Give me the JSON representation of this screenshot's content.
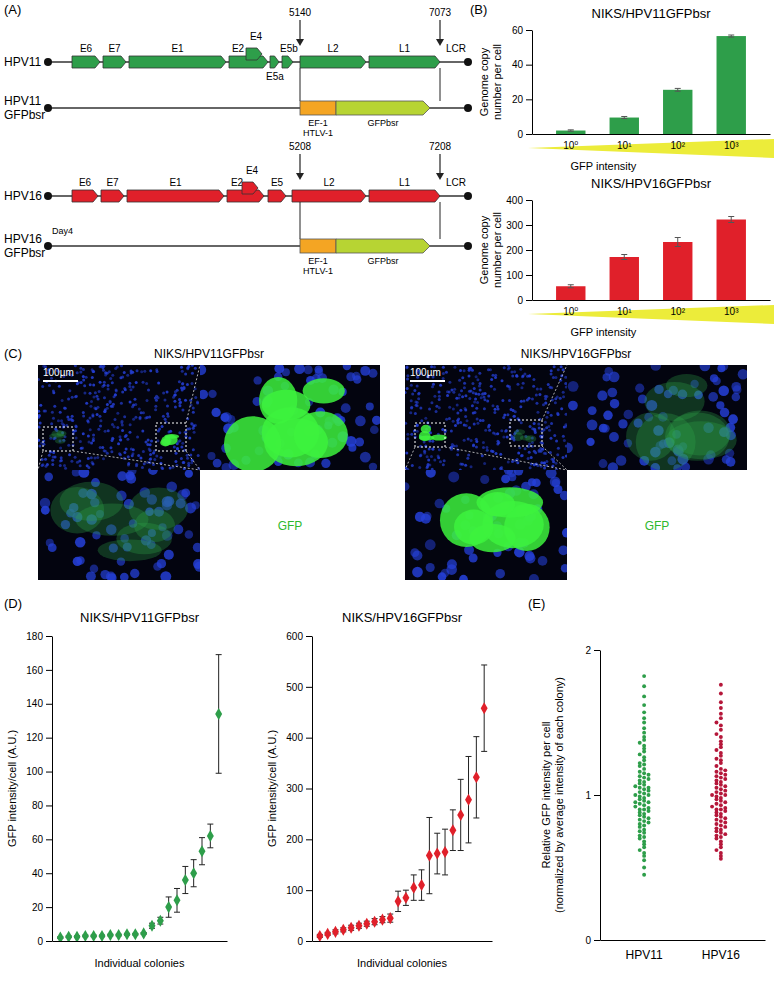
{
  "panel_labels": [
    "(A)",
    "(B)",
    "(C)",
    "(D)",
    "(E)"
  ],
  "diagram": {
    "constructs": [
      {
        "label": [
          "HPV11"
        ],
        "genes": [
          "E6",
          "E7",
          "E1",
          "E2",
          "E4",
          "E5a",
          "E5b",
          "L2",
          "L1"
        ],
        "lcr": "LCR",
        "sites": [
          "5140",
          "7073"
        ],
        "color": "#2e9e4a"
      },
      {
        "label": [
          "HPV11",
          "GFPbsr"
        ],
        "cassette": [
          "EF-1",
          "HTLV-1",
          "GFPbsr"
        ]
      },
      {
        "label": [
          "HPV16"
        ],
        "genes": [
          "E6",
          "E7",
          "E1",
          "E2",
          "E4",
          "E5",
          "L2",
          "L1"
        ],
        "lcr": "LCR",
        "sites": [
          "5208",
          "7208"
        ],
        "color": "#e0202a"
      },
      {
        "label": [
          "HPV16",
          "GFPbsr"
        ],
        "note": "Day4",
        "cassette": [
          "EF-1",
          "HTLV-1",
          "GFPbsr"
        ]
      }
    ]
  },
  "images": [
    {
      "title": "NIKS/HPV11GFPbsr",
      "scale_bar": "100µm",
      "channel": "GFP"
    },
    {
      "title": "NIKS/HPV16GFPbsr",
      "scale_bar": "100µm",
      "channel": "GFP"
    }
  ],
  "chart_data": [
    {
      "type": "bar",
      "title": "NIKS/HPV11GFPbsr",
      "x_label": "GFP intensity",
      "y_label": [
        "Genome copy",
        "number per cell"
      ],
      "categories": [
        "10⁰",
        "10¹",
        "10²",
        "10³"
      ],
      "values": [
        2,
        9.5,
        25.5,
        56.5
      ],
      "errors": [
        0.4,
        0.6,
        0.8,
        0.6
      ],
      "ylim": [
        0,
        60
      ],
      "yticks": [
        0,
        20,
        40,
        60
      ],
      "color": "#2e9e4a"
    },
    {
      "type": "bar",
      "title": "NIKS/HPV16GFPbsr",
      "x_label": "GFP intensity",
      "y_label": [
        "Genome copy",
        "number per cell"
      ],
      "categories": [
        "10⁰",
        "10¹",
        "10²",
        "10³"
      ],
      "values": [
        55,
        172,
        232,
        322
      ],
      "errors": [
        6,
        10,
        18,
        12
      ],
      "ylim": [
        0,
        400
      ],
      "yticks": [
        0,
        100,
        200,
        300,
        400
      ],
      "color": "#e0202a"
    },
    {
      "type": "scatter",
      "title": "NIKS/HPV11GFPbsr",
      "x_label": "Individual colonies",
      "y_label": "GFP intensity/cell (A.U.)",
      "x": [
        1,
        2,
        3,
        4,
        5,
        6,
        7,
        8,
        9,
        10,
        11,
        12,
        13,
        14,
        15,
        16,
        17,
        18,
        19,
        20
      ],
      "values": [
        2,
        2.5,
        2.5,
        3,
        3,
        3,
        3.5,
        3.5,
        4,
        4,
        4.5,
        9,
        12,
        20,
        24,
        36,
        40,
        53,
        62,
        134
      ],
      "errors": [
        0.5,
        0.5,
        0.5,
        0.5,
        0.5,
        0.5,
        0.5,
        0.5,
        0.5,
        0.5,
        0.5,
        1.5,
        2,
        6,
        7,
        8,
        8,
        8,
        7,
        35
      ],
      "xlim": [
        0,
        21
      ],
      "ylim": [
        0,
        180
      ],
      "yticks": [
        0,
        20,
        40,
        60,
        80,
        100,
        120,
        140,
        160,
        180
      ],
      "color": "#2e9e4a",
      "marker": "diamond",
      "tick_labels": "y"
    },
    {
      "type": "scatter",
      "title": "NIKS/HPV16GFPbsr",
      "x_label": "Individual colonies",
      "y_label": "GFP intensity/cell (A.U.)",
      "x": [
        1,
        2,
        3,
        4,
        5,
        6,
        7,
        8,
        9,
        10,
        11,
        12,
        13,
        14,
        15,
        16,
        17,
        18,
        19,
        20,
        21,
        22
      ],
      "values": [
        10,
        14,
        18,
        22,
        26,
        30,
        34,
        38,
        42,
        45,
        78,
        85,
        105,
        110,
        168,
        172,
        175,
        218,
        248,
        278,
        322,
        458
      ],
      "errors": [
        3,
        3,
        4,
        4,
        5,
        5,
        5,
        6,
        6,
        8,
        20,
        15,
        25,
        30,
        75,
        40,
        45,
        40,
        70,
        85,
        80,
        85
      ],
      "xlim": [
        0,
        23
      ],
      "ylim": [
        0,
        600
      ],
      "yticks": [
        0,
        100,
        200,
        300,
        400,
        500,
        600
      ],
      "color": "#e0202a",
      "marker": "diamond",
      "tick_labels": "y"
    },
    {
      "type": "strip",
      "y_label": [
        "Relative GFP intensity per cell",
        "(normalized by average intensity of each colony)"
      ],
      "categories": [
        "HPV11",
        "HPV16"
      ],
      "colors": [
        "#2e9e4a",
        "#b5173a"
      ],
      "marker": "circle",
      "ylim": [
        0,
        2
      ],
      "yticks": [
        0,
        1,
        2
      ],
      "values": [
        [
          0.45,
          0.5,
          0.55,
          0.58,
          0.6,
          0.62,
          0.64,
          0.66,
          0.68,
          0.7,
          0.71,
          0.72,
          0.74,
          0.75,
          0.76,
          0.78,
          0.79,
          0.8,
          0.81,
          0.82,
          0.83,
          0.84,
          0.85,
          0.86,
          0.87,
          0.88,
          0.89,
          0.9,
          0.9,
          0.91,
          0.92,
          0.93,
          0.94,
          0.95,
          0.95,
          0.96,
          0.97,
          0.98,
          0.99,
          1.0,
          1.0,
          1.01,
          1.02,
          1.03,
          1.04,
          1.05,
          1.05,
          1.06,
          1.07,
          1.08,
          1.09,
          1.1,
          1.11,
          1.12,
          1.13,
          1.14,
          1.15,
          1.16,
          1.18,
          1.2,
          1.21,
          1.22,
          1.24,
          1.26,
          1.28,
          1.3,
          1.32,
          1.34,
          1.36,
          1.38,
          1.4,
          1.43,
          1.46,
          1.5,
          1.53,
          1.57,
          1.62,
          1.68,
          1.75,
          1.82
        ],
        [
          0.56,
          0.58,
          0.6,
          0.62,
          0.64,
          0.66,
          0.68,
          0.7,
          0.71,
          0.72,
          0.73,
          0.74,
          0.75,
          0.76,
          0.77,
          0.78,
          0.79,
          0.8,
          0.81,
          0.82,
          0.83,
          0.84,
          0.85,
          0.86,
          0.87,
          0.88,
          0.89,
          0.9,
          0.9,
          0.91,
          0.92,
          0.93,
          0.94,
          0.95,
          0.96,
          0.97,
          0.98,
          0.99,
          1.0,
          1.0,
          1.01,
          1.02,
          1.03,
          1.04,
          1.05,
          1.06,
          1.07,
          1.08,
          1.09,
          1.1,
          1.11,
          1.12,
          1.13,
          1.14,
          1.15,
          1.16,
          1.17,
          1.18,
          1.2,
          1.22,
          1.24,
          1.25,
          1.27,
          1.29,
          1.31,
          1.33,
          1.35,
          1.37,
          1.4,
          1.42,
          1.45,
          1.48,
          1.5,
          1.53,
          1.56,
          1.6,
          1.64,
          1.7,
          1.76
        ]
      ]
    }
  ]
}
